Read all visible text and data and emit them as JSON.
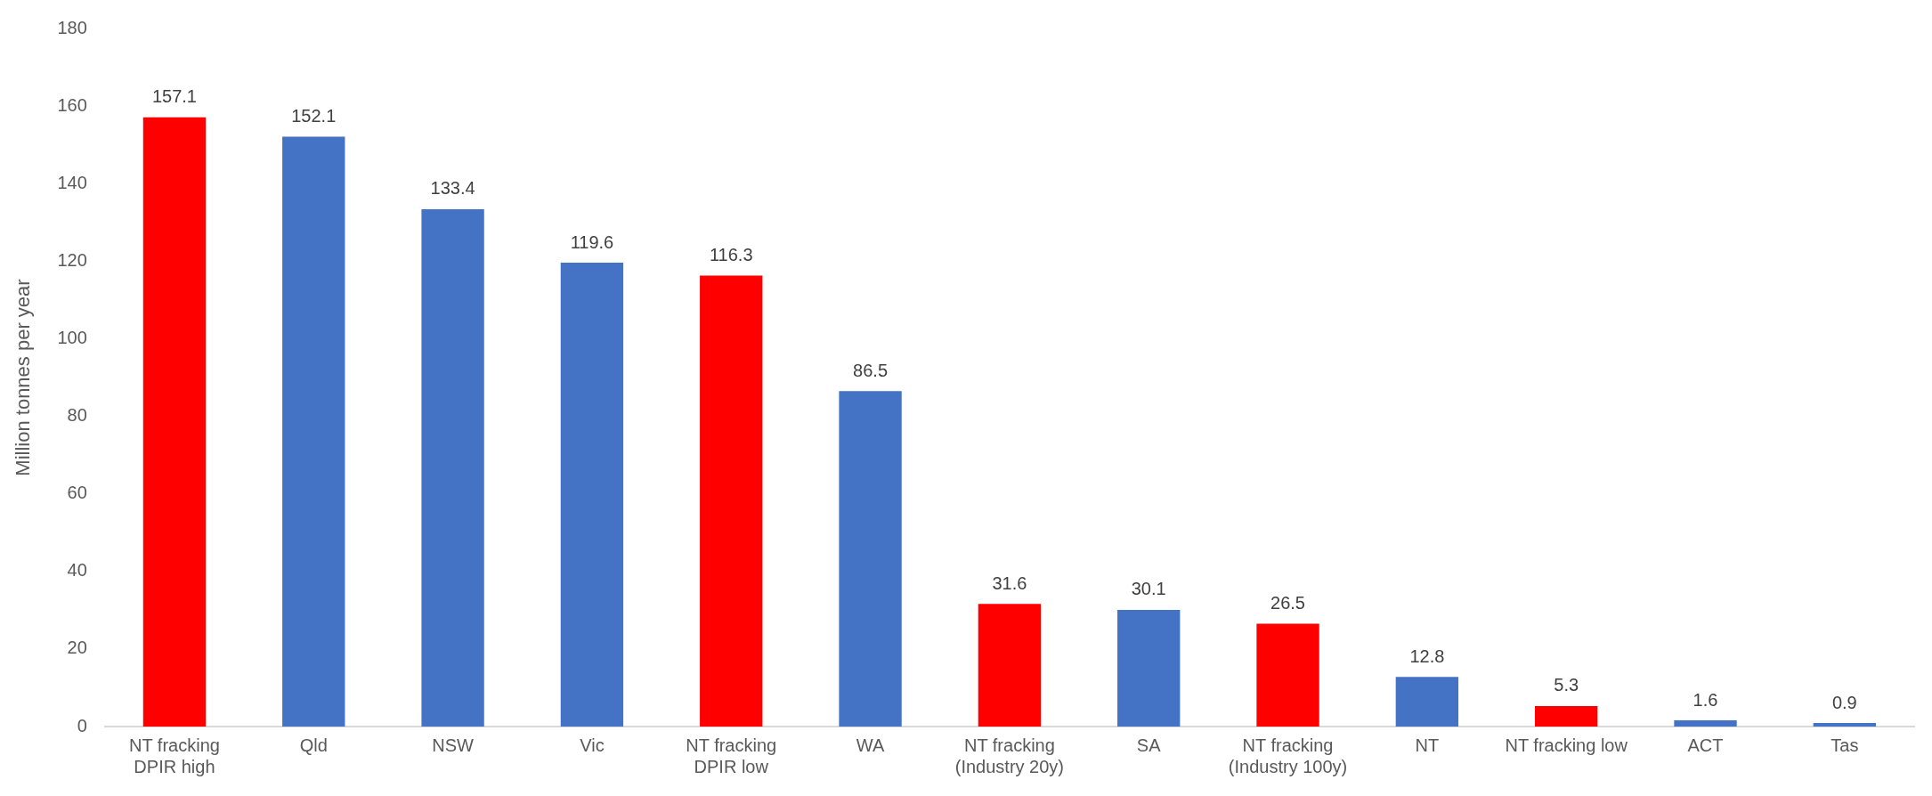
{
  "chart_data": {
    "type": "bar",
    "ylabel": "Million tonnes per year",
    "categories": [
      "NT fracking DPIR high",
      "Qld",
      "NSW",
      "Vic",
      "NT fracking DPIR low",
      "WA",
      "NT fracking (Industry 20y)",
      "SA",
      "NT fracking (Industry 100y)",
      "NT",
      "NT fracking low",
      "ACT",
      "Tas"
    ],
    "values": [
      157.1,
      152.1,
      133.4,
      119.6,
      116.3,
      86.5,
      31.6,
      30.1,
      26.5,
      12.8,
      5.3,
      1.6,
      0.9
    ],
    "colors": [
      "#ff0000",
      "#4472c4",
      "#4472c4",
      "#4472c4",
      "#ff0000",
      "#4472c4",
      "#ff0000",
      "#4472c4",
      "#ff0000",
      "#4472c4",
      "#ff0000",
      "#4472c4",
      "#4472c4"
    ],
    "ylim": [
      0,
      180
    ],
    "yticks": [
      0,
      20,
      40,
      60,
      80,
      100,
      120,
      140,
      160,
      180
    ],
    "grid": false,
    "legend": false,
    "data_labels": true
  }
}
